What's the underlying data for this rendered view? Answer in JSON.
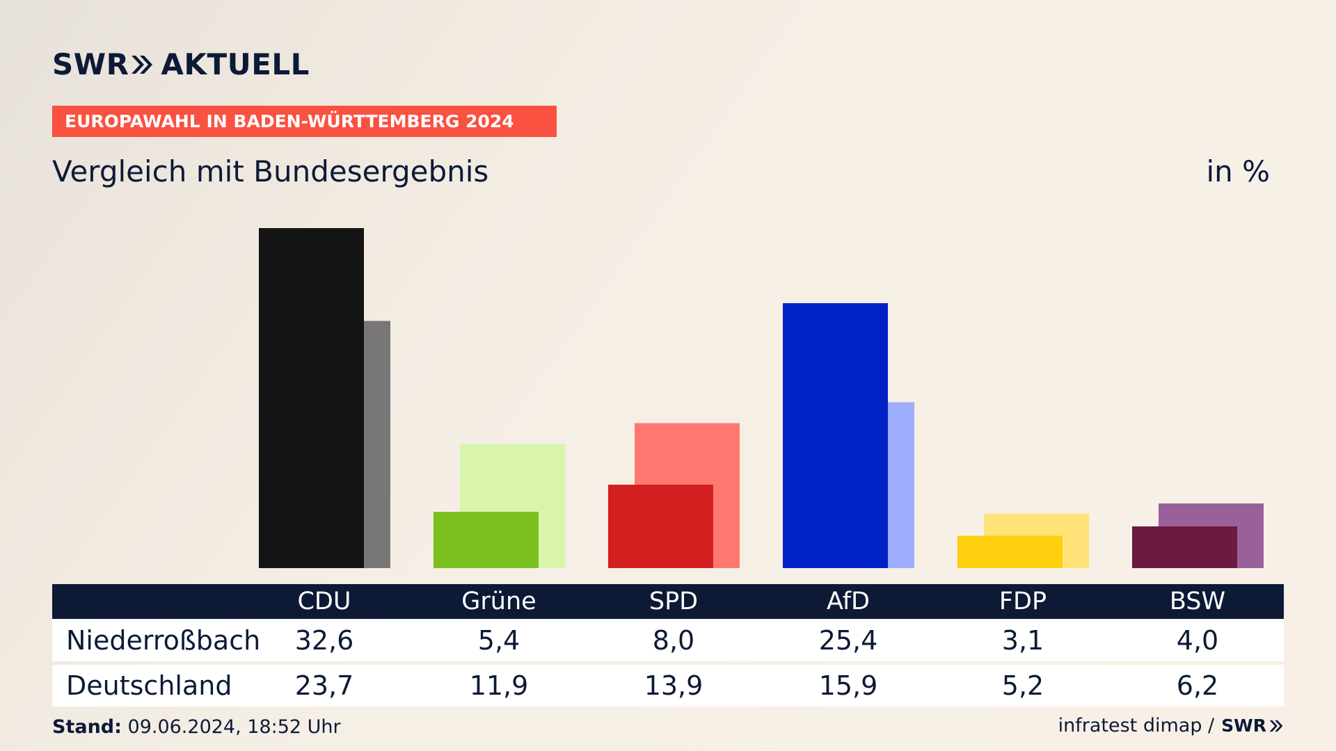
{
  "header": {
    "logo_text": "SWR",
    "logo_suffix": "AKTUELL",
    "badge": "EUROPAWAHL IN BADEN-WÜRTTEMBERG 2024",
    "subtitle": "Vergleich mit Bundesergebnis",
    "unit": "in %"
  },
  "table": {
    "row_labels": [
      "Niederroßbach",
      "Deutschland"
    ]
  },
  "footer": {
    "stand_label": "Stand:",
    "stand_value": "09.06.2024, 18:52 Uhr",
    "source": "infratest dimap /",
    "logo_text": "SWR"
  },
  "colors": {
    "navy": "#0c1a36",
    "badge": "#fb5140"
  },
  "chart_data": {
    "type": "bar",
    "categories": [
      "CDU",
      "Grüne",
      "SPD",
      "AfD",
      "FDP",
      "BSW"
    ],
    "series": [
      {
        "name": "Niederroßbach",
        "values": [
          32.6,
          5.4,
          8.0,
          25.4,
          3.1,
          4.0
        ],
        "colors": [
          "#141414",
          "#7ac01e",
          "#d42020",
          "#0021c6",
          "#ffcf0d",
          "#6c1a40"
        ]
      },
      {
        "name": "Deutschland",
        "values": [
          23.7,
          11.9,
          13.9,
          15.9,
          5.2,
          6.2
        ],
        "colors": [
          "#787676",
          "#d8f5aa",
          "#ff7870",
          "#9daeff",
          "#ffe278",
          "#9a609a"
        ]
      }
    ],
    "value_labels": {
      "Niederroßbach": [
        "32,6",
        "5,4",
        "8,0",
        "25,4",
        "3,1",
        "4,0"
      ],
      "Deutschland": [
        "23,7",
        "11,9",
        "13,9",
        "15,9",
        "5,2",
        "6,2"
      ]
    },
    "ylim": [
      0,
      32.6
    ],
    "grid": false,
    "legend": "none"
  }
}
